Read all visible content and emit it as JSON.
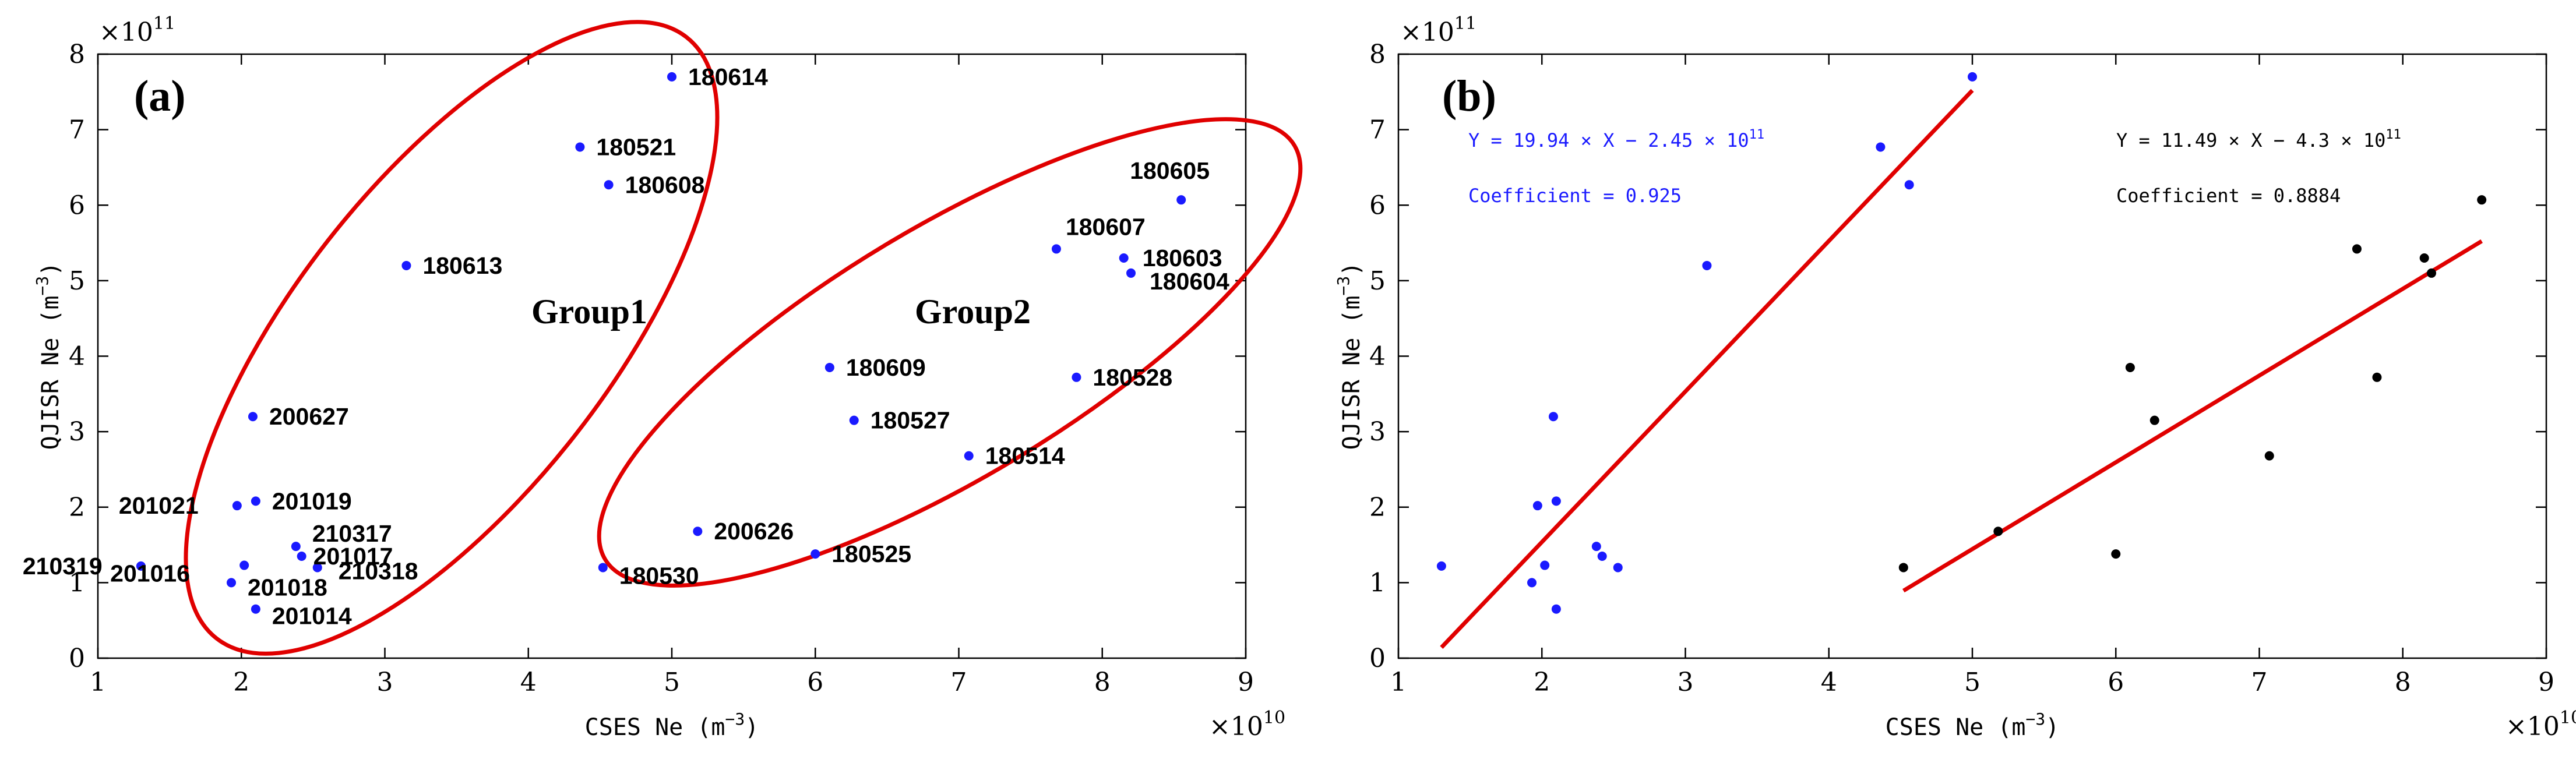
{
  "chart_data": [
    {
      "id": "a",
      "type": "scatter",
      "panel_label": "(a)",
      "xlabel": "CSES Ne (m",
      "ylabel": "QJISR Ne (m",
      "unit_exponent": "−3",
      "x_multiplier": "×10",
      "x_multiplier_exp": "10",
      "y_multiplier": "×10",
      "y_multiplier_exp": "11",
      "xlim": [
        1,
        9
      ],
      "ylim": [
        0,
        8
      ],
      "xticks": [
        1,
        2,
        3,
        4,
        5,
        6,
        7,
        8,
        9
      ],
      "yticks": [
        0,
        1,
        2,
        3,
        4,
        5,
        6,
        7,
        8
      ],
      "grid": false,
      "point_color": "#1a1aff",
      "points": [
        {
          "x": 5.0,
          "y": 7.7,
          "label": "180614"
        },
        {
          "x": 4.36,
          "y": 6.77,
          "label": "180521"
        },
        {
          "x": 4.56,
          "y": 6.27,
          "label": "180608"
        },
        {
          "x": 3.15,
          "y": 5.2,
          "label": "180613"
        },
        {
          "x": 2.08,
          "y": 3.2,
          "label": "200627"
        },
        {
          "x": 1.97,
          "y": 2.02,
          "label": "201021"
        },
        {
          "x": 2.1,
          "y": 2.08,
          "label": "201019"
        },
        {
          "x": 1.3,
          "y": 1.22,
          "label": "210319"
        },
        {
          "x": 2.02,
          "y": 1.23,
          "label": "201016"
        },
        {
          "x": 2.38,
          "y": 1.48,
          "label": "210317"
        },
        {
          "x": 2.42,
          "y": 1.35,
          "label": "201017"
        },
        {
          "x": 2.53,
          "y": 1.2,
          "label": "210318"
        },
        {
          "x": 1.93,
          "y": 1.0,
          "label": "201018"
        },
        {
          "x": 2.1,
          "y": 0.65,
          "label": "201014"
        },
        {
          "x": 8.55,
          "y": 6.07,
          "label": "180605"
        },
        {
          "x": 7.68,
          "y": 5.42,
          "label": "180607"
        },
        {
          "x": 8.15,
          "y": 5.3,
          "label": "180603"
        },
        {
          "x": 8.2,
          "y": 5.1,
          "label": "180604"
        },
        {
          "x": 6.1,
          "y": 3.85,
          "label": "180609"
        },
        {
          "x": 7.82,
          "y": 3.72,
          "label": "180528"
        },
        {
          "x": 6.27,
          "y": 3.15,
          "label": "180527"
        },
        {
          "x": 7.07,
          "y": 2.68,
          "label": "180514"
        },
        {
          "x": 5.18,
          "y": 1.68,
          "label": "200626"
        },
        {
          "x": 6.0,
          "y": 1.38,
          "label": "180525"
        },
        {
          "x": 4.52,
          "y": 1.2,
          "label": "180530"
        }
      ],
      "groups": [
        {
          "label": "Group1",
          "color": "#e00000"
        },
        {
          "label": "Group2",
          "color": "#e00000"
        }
      ]
    },
    {
      "id": "b",
      "type": "scatter",
      "panel_label": "(b)",
      "xlabel": "CSES Ne (m",
      "ylabel": "QJISR Ne (m",
      "unit_exponent": "−3",
      "x_multiplier": "×10",
      "x_multiplier_exp": "10",
      "y_multiplier": "×10",
      "y_multiplier_exp": "11",
      "xlim": [
        1,
        9
      ],
      "ylim": [
        0,
        8
      ],
      "xticks": [
        1,
        2,
        3,
        4,
        5,
        6,
        7,
        8,
        9
      ],
      "yticks": [
        0,
        1,
        2,
        3,
        4,
        5,
        6,
        7,
        8
      ],
      "grid": false,
      "series": [
        {
          "name": "Group1",
          "color": "#1a1aff",
          "x": [
            5.0,
            4.36,
            4.56,
            3.15,
            2.08,
            1.97,
            2.1,
            1.3,
            2.02,
            2.38,
            2.42,
            2.53,
            1.93,
            2.1
          ],
          "y": [
            7.7,
            6.77,
            6.27,
            5.2,
            3.2,
            2.02,
            2.08,
            1.22,
            1.23,
            1.48,
            1.35,
            1.2,
            1.0,
            0.65
          ],
          "fit": {
            "equation": "Y = 19.94 × X − 2.45 × 10",
            "equation_exp": "11",
            "coefficient_text": "Coefficient = 0.925",
            "slope": 1.994,
            "intercept": -2.45,
            "x_range": [
              1.3,
              5.0
            ],
            "line_color": "#e00000"
          }
        },
        {
          "name": "Group2",
          "color": "#000000",
          "x": [
            8.55,
            7.68,
            8.15,
            8.2,
            6.1,
            7.82,
            6.27,
            7.07,
            5.18,
            6.0,
            4.52
          ],
          "y": [
            6.07,
            5.42,
            5.3,
            5.1,
            3.85,
            3.72,
            3.15,
            2.68,
            1.68,
            1.38,
            1.2
          ],
          "fit": {
            "equation": "Y = 11.49 × X − 4.3 × 10",
            "equation_exp": "11",
            "coefficient_text": "Coefficient = 0.8884",
            "slope": 1.149,
            "intercept": -4.3,
            "x_range": [
              4.52,
              8.55
            ],
            "line_color": "#e00000"
          }
        }
      ]
    }
  ]
}
